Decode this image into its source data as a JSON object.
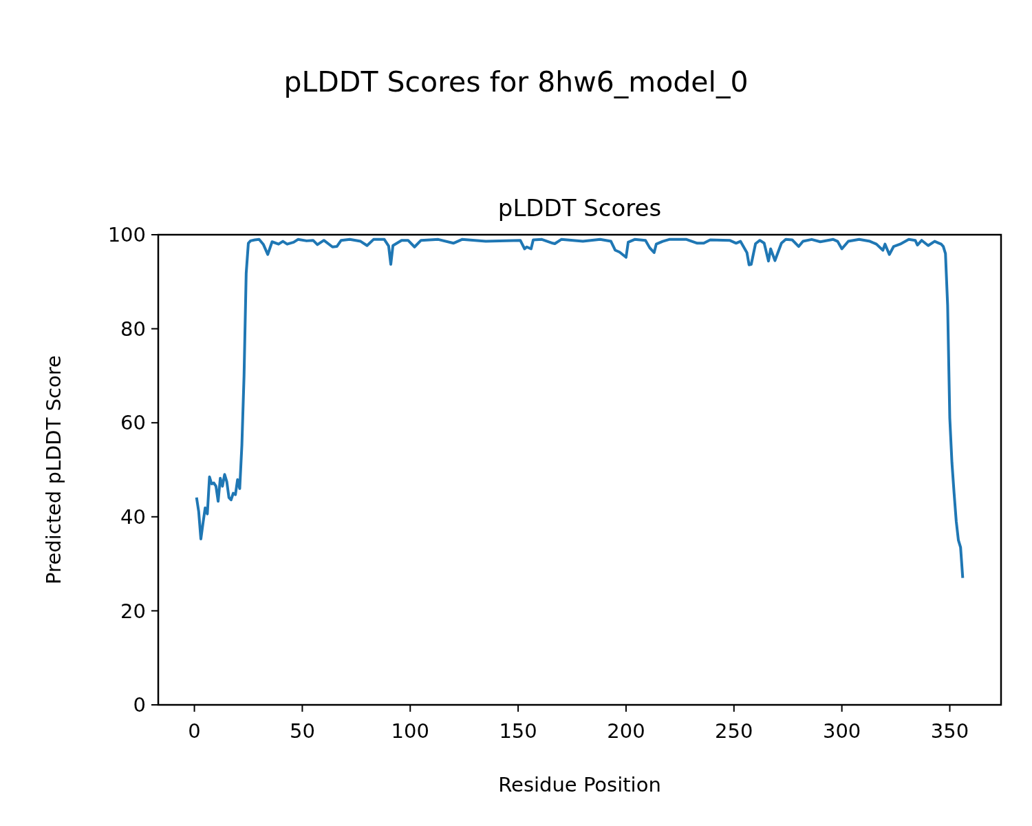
{
  "chart_data": {
    "type": "line",
    "title": "pLDDT Scores for 8hw6_model_0",
    "subtitle": "pLDDT Scores",
    "xlabel": "Residue Position",
    "ylabel": "Predicted pLDDT Score",
    "xlim": [
      -16.75,
      373.75
    ],
    "xticks": [
      0,
      50,
      100,
      150,
      200,
      250,
      300,
      350
    ],
    "ylim": [
      0,
      100
    ],
    "yticks": [
      0,
      20,
      40,
      60,
      80,
      100
    ],
    "grid": false,
    "series": [
      {
        "color": "#1f77b4",
        "x": [
          1,
          2,
          3,
          4,
          5,
          6,
          7,
          8,
          9,
          10,
          11,
          12,
          13,
          14,
          15,
          16,
          17,
          18,
          19,
          20,
          21,
          22,
          23,
          24,
          25,
          26,
          28,
          30,
          32,
          34,
          36,
          39,
          41,
          43,
          46,
          48,
          52,
          55,
          57,
          60,
          64,
          66,
          68,
          72,
          77,
          80,
          83,
          88,
          90,
          91,
          92,
          96,
          99,
          102,
          105,
          113,
          120,
          124,
          135,
          151,
          153,
          154,
          156,
          157,
          161,
          166,
          167,
          170,
          180,
          188,
          193,
          195,
          197,
          200,
          201,
          204,
          209,
          211,
          213,
          214,
          217,
          220,
          228,
          233,
          236,
          239,
          248,
          251,
          253,
          256,
          257,
          258,
          260,
          262,
          264,
          266,
          267,
          269,
          272,
          274,
          277,
          280,
          282,
          286,
          290,
          296,
          298,
          300,
          303,
          308,
          313,
          316,
          319,
          320,
          322,
          324,
          327,
          331,
          334,
          335,
          337,
          340,
          343,
          345,
          346,
          347,
          348,
          349,
          350,
          351,
          352,
          353,
          354,
          355,
          356
        ],
        "values": [
          44.1,
          41.1,
          35.3,
          38.7,
          41.9,
          40.6,
          48.5,
          47,
          47.2,
          46.5,
          43.3,
          48.2,
          46.5,
          49,
          47.5,
          44.1,
          43.6,
          45,
          44.7,
          47.9,
          46,
          55.2,
          69.9,
          91.8,
          98.2,
          98.7,
          98.9,
          99,
          97.9,
          95.8,
          98.5,
          98,
          98.6,
          98,
          98.4,
          99,
          98.7,
          98.8,
          97.9,
          98.8,
          97.4,
          97.5,
          98.8,
          99,
          98.6,
          97.7,
          99,
          99,
          97.6,
          93.7,
          97.7,
          98.8,
          98.8,
          97.4,
          98.8,
          99,
          98.2,
          99,
          98.6,
          98.8,
          97,
          97.4,
          97,
          98.9,
          99,
          98.2,
          98.1,
          99,
          98.6,
          99,
          98.6,
          96.7,
          96.3,
          95.2,
          98.4,
          99,
          98.8,
          97.2,
          96.2,
          98,
          98.6,
          99,
          99,
          98.2,
          98.2,
          98.9,
          98.8,
          98.2,
          98.6,
          96.2,
          93.6,
          93.7,
          98.1,
          98.8,
          98.2,
          94.4,
          97,
          94.5,
          98.2,
          99,
          98.9,
          97.5,
          98.6,
          99,
          98.5,
          99,
          98.6,
          97,
          98.6,
          99,
          98.6,
          98,
          96.7,
          98,
          95.8,
          97.5,
          98,
          99,
          98.8,
          97.8,
          98.8,
          97.7,
          98.6,
          98.2,
          98,
          97.5,
          96,
          85,
          61,
          51.5,
          45,
          39,
          35,
          33.5,
          27
        ]
      }
    ]
  }
}
